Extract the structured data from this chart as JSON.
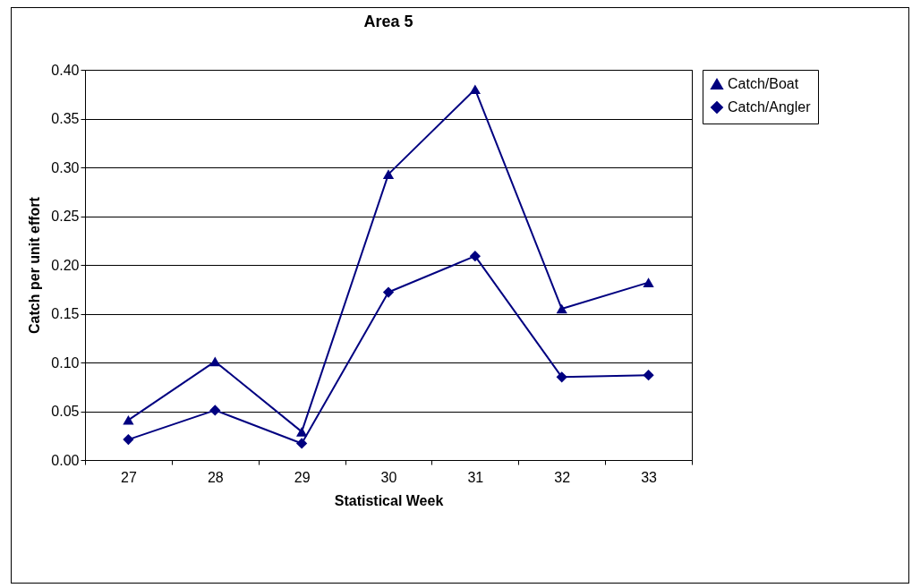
{
  "chart_data": {
    "type": "line",
    "title": "Area 5",
    "xlabel": "Statistical Week",
    "ylabel": "Catch per unit effort",
    "categories": [
      "27",
      "28",
      "29",
      "30",
      "31",
      "32",
      "33"
    ],
    "series": [
      {
        "name": "Catch/Boat",
        "color": "#000080",
        "marker": "triangle",
        "values": [
          0.041,
          0.101,
          0.029,
          0.293,
          0.38,
          0.155,
          0.182
        ]
      },
      {
        "name": "Catch/Angler",
        "color": "#000080",
        "marker": "diamond",
        "values": [
          0.021,
          0.051,
          0.017,
          0.172,
          0.209,
          0.085,
          0.087
        ]
      }
    ],
    "ylim": [
      0,
      0.4
    ],
    "yticks": [
      {
        "value": 0,
        "label": "0.00"
      },
      {
        "value": 0.05,
        "label": "0.05"
      },
      {
        "value": 0.1,
        "label": "0.10"
      },
      {
        "value": 0.15,
        "label": "0.15"
      },
      {
        "value": 0.2,
        "label": "0.20"
      },
      {
        "value": 0.25,
        "label": "0.25"
      },
      {
        "value": 0.3,
        "label": "0.30"
      },
      {
        "value": 0.35,
        "label": "0.35"
      },
      {
        "value": 0.4,
        "label": "0.40"
      }
    ],
    "grid": "y",
    "legend": "right"
  }
}
